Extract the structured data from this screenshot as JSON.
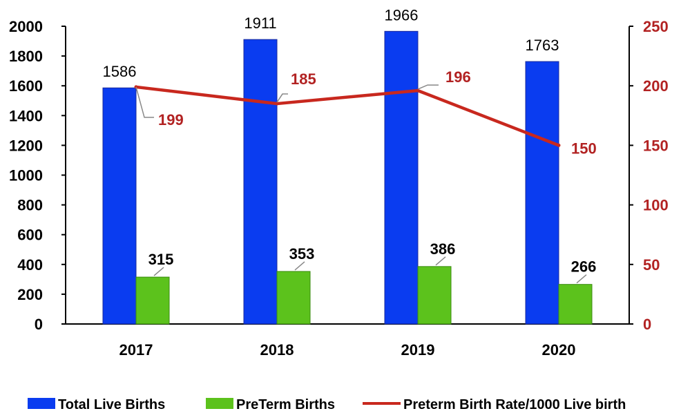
{
  "chart_data": {
    "type": "bar",
    "categories": [
      "2017",
      "2018",
      "2019",
      "2020"
    ],
    "series": [
      {
        "name": "Total Live Births",
        "kind": "bar",
        "axis": "left",
        "color": "#0a3cf0",
        "values": [
          1586,
          1911,
          1966,
          1763
        ]
      },
      {
        "name": "PreTerm Births",
        "kind": "bar",
        "axis": "left",
        "color": "#5cc21c",
        "values": [
          315,
          353,
          386,
          266
        ]
      },
      {
        "name": "Preterm Birth Rate/1000 Live birth",
        "kind": "line",
        "axis": "right",
        "color": "#c8281e",
        "values": [
          199,
          185,
          196,
          150
        ]
      }
    ],
    "y_left": {
      "min": 0,
      "max": 2000,
      "ticks": [
        "0",
        "200",
        "400",
        "600",
        "800",
        "1000",
        "1200",
        "1400",
        "1600",
        "1800",
        "2000"
      ]
    },
    "y_right": {
      "min": 0,
      "max": 250,
      "ticks": [
        "0",
        "50",
        "100",
        "150",
        "200",
        "250"
      ],
      "color": "#b22222"
    },
    "legend_position": "bottom",
    "grid": false
  }
}
